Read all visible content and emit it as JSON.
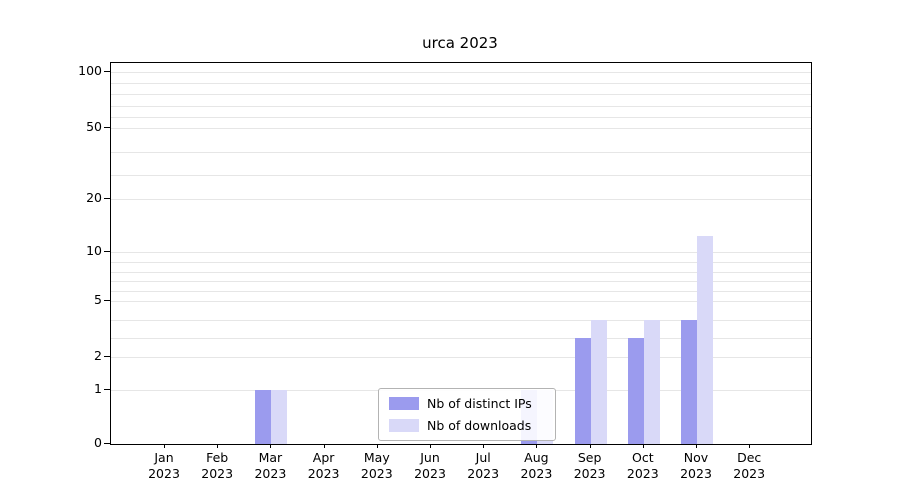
{
  "chart_data": {
    "type": "bar",
    "title": "urca 2023",
    "months": [
      "Jan",
      "Feb",
      "Mar",
      "Apr",
      "May",
      "Jun",
      "Jul",
      "Aug",
      "Sep",
      "Oct",
      "Nov",
      "Dec"
    ],
    "year": "2023",
    "categories": [
      "Jan 2023",
      "Feb 2023",
      "Mar 2023",
      "Apr 2023",
      "May 2023",
      "Jun 2023",
      "Jul 2023",
      "Aug 2023",
      "Sep 2023",
      "Oct 2023",
      "Nov 2023",
      "Dec 2023"
    ],
    "series": [
      {
        "name": "Nb of distinct IPs",
        "color": "#9b9bee",
        "values": [
          0,
          0,
          1,
          0,
          0,
          0,
          0,
          1,
          3,
          3,
          4,
          0
        ]
      },
      {
        "name": "Nb of downloads",
        "color": "#d9d9f8",
        "values": [
          0,
          0,
          1,
          0,
          0,
          0,
          0,
          1,
          4,
          4,
          13,
          0
        ]
      }
    ],
    "y_ticks": [
      0,
      1,
      2,
      5,
      10,
      20,
      50,
      100
    ],
    "ylabel": "",
    "xlabel": "",
    "scale": "symlog",
    "grid": true,
    "legend_position": "lower center"
  }
}
